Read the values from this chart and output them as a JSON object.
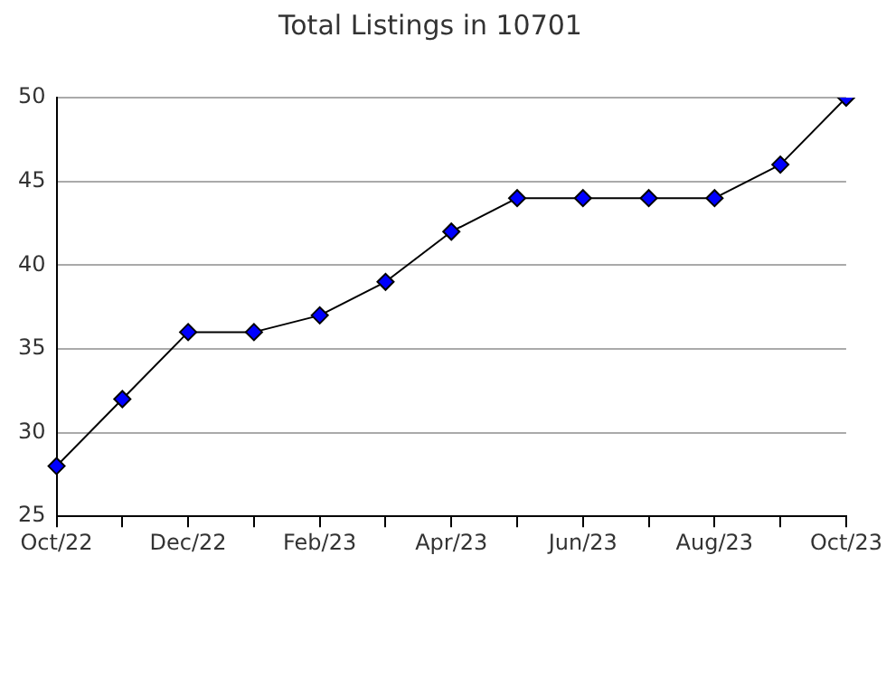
{
  "chart_data": {
    "type": "line",
    "title": "Total Listings in 10701",
    "categories": [
      "Oct/22",
      null,
      "Dec/22",
      null,
      "Feb/23",
      null,
      "Apr/23",
      null,
      "Jun/23",
      null,
      "Aug/23",
      null,
      "Oct/23"
    ],
    "values": [
      28,
      32,
      36,
      36,
      37,
      39,
      42,
      44,
      44,
      44,
      44,
      46,
      50
    ],
    "color": "#0000ff",
    "marker": "diamond",
    "line_style": "solid",
    "ylim": [
      25,
      50
    ],
    "yticks": [
      25,
      30,
      35,
      40,
      45,
      50
    ],
    "grid": "y",
    "legend": false
  }
}
